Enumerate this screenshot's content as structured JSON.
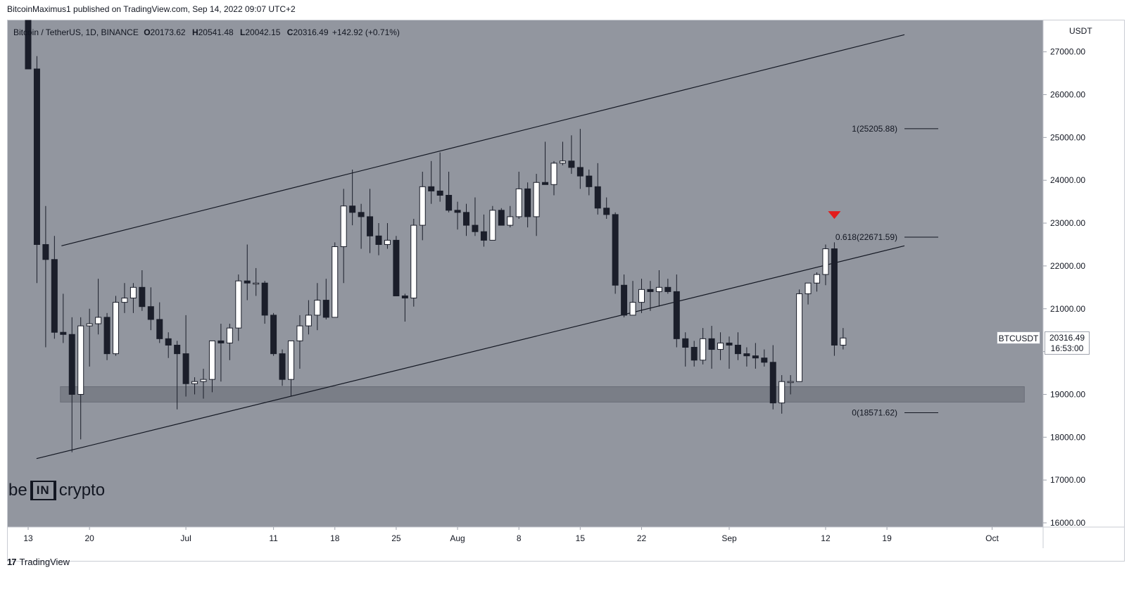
{
  "header": {
    "published_line": "BitcoinMaximus1 published on TradingView.com, Sep 14, 2022 09:07 UTC+2"
  },
  "legend": {
    "symbol": "Bitcoin / TetherUS, 1D, BINANCE",
    "o_label": "O",
    "o": "20173.62",
    "h_label": "H",
    "h": "20541.48",
    "l_label": "L",
    "l": "20042.15",
    "c_label": "C",
    "c": "20316.49",
    "change": "+142.92 (+0.71%)"
  },
  "axis_unit": "USDT",
  "symbol_tag": "BTCUSDT",
  "price_tag": {
    "price": "20316.49",
    "countdown": "16:53:00"
  },
  "watermark": {
    "left": "be",
    "box": "IN",
    "right": "crypto"
  },
  "footer": {
    "brand": "TradingView",
    "icon": "tradingview-logo-icon"
  },
  "colors": {
    "plot_bg": "#92969f",
    "bull_fill": "#ffffff",
    "bear_fill": "#1b1e2a",
    "wick": "#1b1e2a",
    "support_zone": "#7a7e87",
    "marker": "#e21b1b"
  },
  "chart_data": {
    "type": "candlestick",
    "ylim": [
      16000,
      27500
    ],
    "y_ticks": [
      16000,
      17000,
      18000,
      19000,
      20000,
      21000,
      22000,
      23000,
      24000,
      25000,
      26000,
      27000
    ],
    "y_tick_labels": [
      "16000.00",
      "17000.00",
      "18000.00",
      "19000.00",
      "20000.00",
      "21000.00",
      "22000.00",
      "23000.00",
      "24000.00",
      "25000.00",
      "26000.00",
      "27000.00"
    ],
    "x_ticks": [
      {
        "label": "13",
        "date": "2022-06-13"
      },
      {
        "label": "20",
        "date": "2022-06-20"
      },
      {
        "label": "Jul",
        "date": "2022-07-01"
      },
      {
        "label": "11",
        "date": "2022-07-11"
      },
      {
        "label": "18",
        "date": "2022-07-18"
      },
      {
        "label": "25",
        "date": "2022-07-25"
      },
      {
        "label": "Aug",
        "date": "2022-08-01"
      },
      {
        "label": "8",
        "date": "2022-08-08"
      },
      {
        "label": "15",
        "date": "2022-08-15"
      },
      {
        "label": "22",
        "date": "2022-08-22"
      },
      {
        "label": "Sep",
        "date": "2022-09-01"
      },
      {
        "label": "12",
        "date": "2022-09-12"
      },
      {
        "label": "19",
        "date": "2022-09-19"
      },
      {
        "label": "Oct",
        "date": "2022-10-01"
      }
    ],
    "candles": [
      {
        "date": "2022-06-13",
        "o": 28000,
        "h": 28200,
        "l": 26600,
        "c": 26600
      },
      {
        "date": "2022-06-14",
        "o": 26600,
        "h": 26900,
        "l": 21600,
        "c": 22500
      },
      {
        "date": "2022-06-15",
        "o": 22500,
        "h": 23400,
        "l": 20100,
        "c": 22150
      },
      {
        "date": "2022-06-16",
        "o": 22150,
        "h": 22700,
        "l": 20300,
        "c": 20450
      },
      {
        "date": "2022-06-17",
        "o": 20450,
        "h": 21350,
        "l": 20200,
        "c": 20400
      },
      {
        "date": "2022-06-18",
        "o": 20400,
        "h": 20800,
        "l": 17650,
        "c": 19000
      },
      {
        "date": "2022-06-19",
        "o": 19000,
        "h": 20800,
        "l": 17950,
        "c": 20600
      },
      {
        "date": "2022-06-20",
        "o": 20600,
        "h": 21000,
        "l": 19650,
        "c": 20650
      },
      {
        "date": "2022-06-21",
        "o": 20650,
        "h": 21700,
        "l": 20400,
        "c": 20800
      },
      {
        "date": "2022-06-22",
        "o": 20800,
        "h": 20900,
        "l": 19800,
        "c": 19950
      },
      {
        "date": "2022-06-23",
        "o": 19950,
        "h": 21300,
        "l": 19900,
        "c": 21150
      },
      {
        "date": "2022-06-24",
        "o": 21150,
        "h": 21600,
        "l": 20900,
        "c": 21250
      },
      {
        "date": "2022-06-25",
        "o": 21250,
        "h": 21600,
        "l": 20900,
        "c": 21500
      },
      {
        "date": "2022-06-26",
        "o": 21500,
        "h": 21900,
        "l": 20950,
        "c": 21050
      },
      {
        "date": "2022-06-27",
        "o": 21050,
        "h": 21500,
        "l": 20500,
        "c": 20750
      },
      {
        "date": "2022-06-28",
        "o": 20750,
        "h": 21150,
        "l": 20200,
        "c": 20300
      },
      {
        "date": "2022-06-29",
        "o": 20300,
        "h": 20450,
        "l": 19850,
        "c": 20150
      },
      {
        "date": "2022-06-30",
        "o": 20150,
        "h": 20250,
        "l": 18650,
        "c": 19950
      },
      {
        "date": "2022-07-01",
        "o": 19950,
        "h": 20850,
        "l": 18950,
        "c": 19250
      },
      {
        "date": "2022-07-02",
        "o": 19250,
        "h": 19400,
        "l": 19000,
        "c": 19300
      },
      {
        "date": "2022-07-03",
        "o": 19300,
        "h": 19600,
        "l": 18900,
        "c": 19350
      },
      {
        "date": "2022-07-04",
        "o": 19350,
        "h": 20250,
        "l": 19050,
        "c": 20250
      },
      {
        "date": "2022-07-05",
        "o": 20250,
        "h": 20650,
        "l": 19300,
        "c": 20200
      },
      {
        "date": "2022-07-06",
        "o": 20200,
        "h": 20650,
        "l": 19800,
        "c": 20550
      },
      {
        "date": "2022-07-07",
        "o": 20550,
        "h": 21800,
        "l": 20250,
        "c": 21650
      },
      {
        "date": "2022-07-08",
        "o": 21650,
        "h": 22500,
        "l": 21200,
        "c": 21600
      },
      {
        "date": "2022-07-09",
        "o": 21600,
        "h": 21950,
        "l": 21300,
        "c": 21600
      },
      {
        "date": "2022-07-10",
        "o": 21600,
        "h": 21650,
        "l": 20650,
        "c": 20850
      },
      {
        "date": "2022-07-11",
        "o": 20850,
        "h": 20900,
        "l": 19900,
        "c": 19950
      },
      {
        "date": "2022-07-12",
        "o": 19950,
        "h": 20050,
        "l": 19200,
        "c": 19350
      },
      {
        "date": "2022-07-13",
        "o": 19350,
        "h": 20250,
        "l": 18950,
        "c": 20250
      },
      {
        "date": "2022-07-14",
        "o": 20250,
        "h": 20850,
        "l": 19600,
        "c": 20600
      },
      {
        "date": "2022-07-15",
        "o": 20600,
        "h": 21200,
        "l": 20400,
        "c": 20850
      },
      {
        "date": "2022-07-16",
        "o": 20850,
        "h": 21600,
        "l": 20500,
        "c": 21200
      },
      {
        "date": "2022-07-17",
        "o": 21200,
        "h": 21700,
        "l": 20750,
        "c": 20800
      },
      {
        "date": "2022-07-18",
        "o": 20800,
        "h": 22550,
        "l": 20800,
        "c": 22450
      },
      {
        "date": "2022-07-19",
        "o": 22450,
        "h": 23800,
        "l": 21600,
        "c": 23400
      },
      {
        "date": "2022-07-20",
        "o": 23400,
        "h": 24250,
        "l": 22950,
        "c": 23250
      },
      {
        "date": "2022-07-21",
        "o": 23250,
        "h": 23450,
        "l": 22400,
        "c": 23150
      },
      {
        "date": "2022-07-22",
        "o": 23150,
        "h": 23800,
        "l": 22300,
        "c": 22700
      },
      {
        "date": "2022-07-23",
        "o": 22700,
        "h": 23000,
        "l": 22250,
        "c": 22500
      },
      {
        "date": "2022-07-24",
        "o": 22500,
        "h": 23000,
        "l": 22400,
        "c": 22600
      },
      {
        "date": "2022-07-25",
        "o": 22600,
        "h": 22700,
        "l": 21300,
        "c": 21300
      },
      {
        "date": "2022-07-26",
        "o": 21300,
        "h": 21350,
        "l": 20700,
        "c": 21250
      },
      {
        "date": "2022-07-27",
        "o": 21250,
        "h": 23100,
        "l": 21050,
        "c": 22950
      },
      {
        "date": "2022-07-28",
        "o": 22950,
        "h": 24200,
        "l": 22600,
        "c": 23850
      },
      {
        "date": "2022-07-29",
        "o": 23850,
        "h": 24450,
        "l": 23450,
        "c": 23750
      },
      {
        "date": "2022-07-30",
        "o": 23750,
        "h": 24650,
        "l": 23500,
        "c": 23650
      },
      {
        "date": "2022-07-31",
        "o": 23650,
        "h": 24200,
        "l": 23250,
        "c": 23300
      },
      {
        "date": "2022-08-01",
        "o": 23300,
        "h": 23500,
        "l": 22850,
        "c": 23250
      },
      {
        "date": "2022-08-02",
        "o": 23250,
        "h": 23450,
        "l": 22700,
        "c": 22950
      },
      {
        "date": "2022-08-03",
        "o": 22950,
        "h": 23600,
        "l": 22700,
        "c": 22800
      },
      {
        "date": "2022-08-04",
        "o": 22800,
        "h": 23200,
        "l": 22450,
        "c": 22600
      },
      {
        "date": "2022-08-05",
        "o": 22600,
        "h": 23400,
        "l": 22600,
        "c": 23300
      },
      {
        "date": "2022-08-06",
        "o": 23300,
        "h": 23350,
        "l": 22950,
        "c": 22950
      },
      {
        "date": "2022-08-07",
        "o": 22950,
        "h": 23400,
        "l": 22900,
        "c": 23150
      },
      {
        "date": "2022-08-08",
        "o": 23150,
        "h": 24200,
        "l": 23100,
        "c": 23800
      },
      {
        "date": "2022-08-09",
        "o": 23800,
        "h": 23950,
        "l": 22900,
        "c": 23150
      },
      {
        "date": "2022-08-10",
        "o": 23150,
        "h": 24150,
        "l": 22700,
        "c": 23950
      },
      {
        "date": "2022-08-11",
        "o": 23950,
        "h": 24900,
        "l": 23900,
        "c": 23900
      },
      {
        "date": "2022-08-12",
        "o": 23900,
        "h": 24450,
        "l": 23650,
        "c": 24400
      },
      {
        "date": "2022-08-13",
        "o": 24400,
        "h": 24900,
        "l": 24350,
        "c": 24450
      },
      {
        "date": "2022-08-14",
        "o": 24450,
        "h": 25050,
        "l": 24150,
        "c": 24300
      },
      {
        "date": "2022-08-15",
        "o": 24300,
        "h": 25200,
        "l": 23800,
        "c": 24100
      },
      {
        "date": "2022-08-16",
        "o": 24100,
        "h": 24250,
        "l": 23650,
        "c": 23850
      },
      {
        "date": "2022-08-17",
        "o": 23850,
        "h": 24400,
        "l": 23200,
        "c": 23350
      },
      {
        "date": "2022-08-18",
        "o": 23350,
        "h": 23600,
        "l": 23100,
        "c": 23200
      },
      {
        "date": "2022-08-19",
        "o": 23200,
        "h": 23250,
        "l": 21350,
        "c": 21550
      },
      {
        "date": "2022-08-20",
        "o": 21550,
        "h": 21800,
        "l": 20800,
        "c": 20850
      },
      {
        "date": "2022-08-21",
        "o": 20850,
        "h": 21650,
        "l": 20850,
        "c": 21150
      },
      {
        "date": "2022-08-22",
        "o": 21150,
        "h": 21700,
        "l": 20900,
        "c": 21450
      },
      {
        "date": "2022-08-23",
        "o": 21450,
        "h": 21650,
        "l": 20950,
        "c": 21400
      },
      {
        "date": "2022-08-24",
        "o": 21400,
        "h": 21900,
        "l": 21050,
        "c": 21500
      },
      {
        "date": "2022-08-25",
        "o": 21500,
        "h": 21700,
        "l": 21350,
        "c": 21400
      },
      {
        "date": "2022-08-26",
        "o": 21400,
        "h": 21800,
        "l": 20100,
        "c": 20300
      },
      {
        "date": "2022-08-27",
        "o": 20300,
        "h": 20450,
        "l": 19650,
        "c": 20100
      },
      {
        "date": "2022-08-28",
        "o": 20100,
        "h": 20250,
        "l": 19650,
        "c": 19800
      },
      {
        "date": "2022-08-29",
        "o": 19800,
        "h": 20550,
        "l": 19700,
        "c": 20300
      },
      {
        "date": "2022-08-30",
        "o": 20300,
        "h": 20600,
        "l": 19600,
        "c": 20050
      },
      {
        "date": "2022-08-31",
        "o": 20050,
        "h": 20450,
        "l": 19800,
        "c": 20200
      },
      {
        "date": "2022-09-01",
        "o": 20200,
        "h": 20350,
        "l": 19600,
        "c": 20150
      },
      {
        "date": "2022-09-02",
        "o": 20150,
        "h": 20450,
        "l": 19800,
        "c": 19950
      },
      {
        "date": "2022-09-03",
        "o": 19950,
        "h": 20100,
        "l": 19650,
        "c": 19900
      },
      {
        "date": "2022-09-04",
        "o": 19900,
        "h": 20200,
        "l": 19600,
        "c": 19850
      },
      {
        "date": "2022-09-05",
        "o": 19850,
        "h": 20050,
        "l": 19650,
        "c": 19750
      },
      {
        "date": "2022-09-06",
        "o": 19750,
        "h": 20150,
        "l": 18650,
        "c": 18800
      },
      {
        "date": "2022-09-07",
        "o": 18800,
        "h": 19450,
        "l": 18550,
        "c": 19300
      },
      {
        "date": "2022-09-08",
        "o": 19300,
        "h": 19450,
        "l": 19000,
        "c": 19300
      },
      {
        "date": "2022-09-09",
        "o": 19300,
        "h": 21450,
        "l": 19300,
        "c": 21350
      },
      {
        "date": "2022-09-10",
        "o": 21350,
        "h": 21600,
        "l": 21100,
        "c": 21600
      },
      {
        "date": "2022-09-11",
        "o": 21600,
        "h": 21850,
        "l": 21400,
        "c": 21800
      },
      {
        "date": "2022-09-12",
        "o": 21800,
        "h": 22500,
        "l": 21550,
        "c": 22400
      },
      {
        "date": "2022-09-13",
        "o": 22400,
        "h": 22550,
        "l": 19900,
        "c": 20150
      },
      {
        "date": "2022-09-14",
        "o": 20150,
        "h": 20550,
        "l": 20050,
        "c": 20316.49
      }
    ],
    "fib_levels": [
      {
        "label": "1(25205.88)",
        "value": 25205.88
      },
      {
        "label": "0.618(22671.59)",
        "value": 22671.59
      },
      {
        "label": "0(18571.62)",
        "value": 18571.62
      }
    ],
    "channel_upper": [
      {
        "date": "2022-06-16",
        "value": 22470
      },
      {
        "date": "2022-09-21",
        "value": 27400
      }
    ],
    "channel_lower": [
      {
        "date": "2022-06-15",
        "value": 17500
      },
      {
        "date": "2022-09-21",
        "value": 22470
      }
    ],
    "support_zone": {
      "from": "2022-06-17",
      "to": "2022-10-05",
      "low": 18820,
      "high": 19180
    },
    "resistance_marker": {
      "date": "2022-09-13",
      "value": 23180
    }
  }
}
